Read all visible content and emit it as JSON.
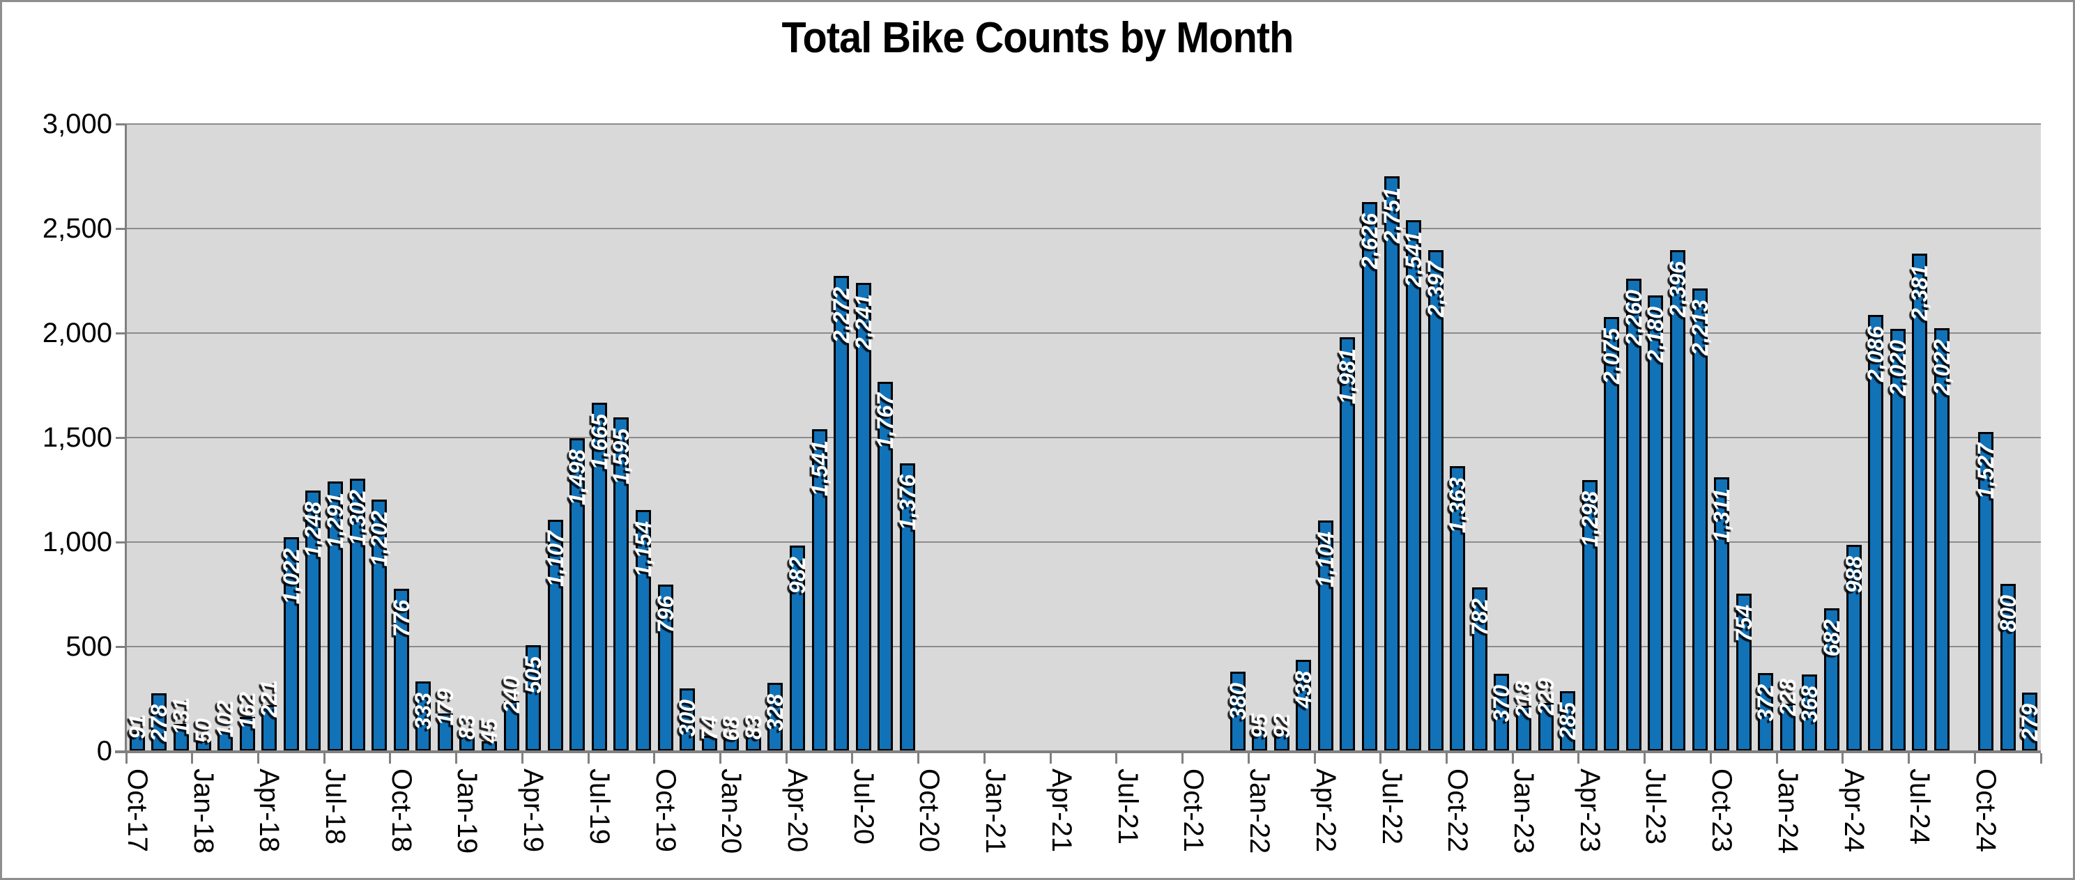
{
  "window": {
    "title": "Total Bike Counts by Month"
  },
  "chart_data": {
    "type": "bar",
    "title": "Total Bike Counts by Month",
    "xlabel": "",
    "ylabel": "",
    "legend": "none",
    "grid": true,
    "plot_bg": "#D9D9D9",
    "colors": {
      "bar_fill": "#1172B8",
      "bar_outline": "#000000",
      "gridline": "#8C8C8C",
      "axis": "#808080",
      "data_label_text": "#FFFFFF",
      "title_text": "#000000"
    },
    "y_axis": {
      "min": 0,
      "max": 3000,
      "step": 500,
      "tick_labels": [
        "0",
        "500",
        "1,000",
        "1,500",
        "2,000",
        "2,500",
        "3,000"
      ]
    },
    "x_axis": {
      "tick_interval": 3,
      "tick_labels": [
        "Oct-17",
        "Jan-18",
        "Apr-18",
        "Jul-18",
        "Oct-18",
        "Jan-19",
        "Apr-19",
        "Jul-19",
        "Oct-19",
        "Jan-20",
        "Apr-20",
        "Jul-20",
        "Oct-20",
        "Jan-21",
        "Apr-21",
        "Jul-21",
        "Oct-21",
        "Jan-22",
        "Apr-22",
        "Jul-22",
        "Oct-22",
        "Jan-23",
        "Apr-23",
        "Jul-23",
        "Oct-23",
        "Jan-24",
        "Apr-24",
        "Jul-24",
        "Oct-24"
      ]
    },
    "categories": [
      "Oct-17",
      "Nov-17",
      "Dec-17",
      "Jan-18",
      "Feb-18",
      "Mar-18",
      "Apr-18",
      "May-18",
      "Jun-18",
      "Jul-18",
      "Aug-18",
      "Sep-18",
      "Oct-18",
      "Nov-18",
      "Dec-18",
      "Jan-19",
      "Feb-19",
      "Mar-19",
      "Apr-19",
      "May-19",
      "Jun-19",
      "Jul-19",
      "Aug-19",
      "Sep-19",
      "Oct-19",
      "Nov-19",
      "Dec-19",
      "Jan-20",
      "Feb-20",
      "Mar-20",
      "Apr-20",
      "May-20",
      "Jun-20",
      "Jul-20",
      "Aug-20",
      "Sep-20",
      "Oct-20",
      "Nov-20",
      "Dec-20",
      "Jan-21",
      "Feb-21",
      "Mar-21",
      "Apr-21",
      "May-21",
      "Jun-21",
      "Jul-21",
      "Aug-21",
      "Sep-21",
      "Oct-21",
      "Nov-21",
      "Dec-21",
      "Jan-22",
      "Feb-22",
      "Mar-22",
      "Apr-22",
      "May-22",
      "Jun-22",
      "Jul-22",
      "Aug-22",
      "Sep-22",
      "Oct-22",
      "Nov-22",
      "Dec-22",
      "Jan-23",
      "Feb-23",
      "Mar-23",
      "Apr-23",
      "May-23",
      "Jun-23",
      "Jul-23",
      "Aug-23",
      "Sep-23",
      "Oct-23",
      "Nov-23",
      "Dec-23",
      "Jan-24",
      "Feb-24",
      "Mar-24",
      "Apr-24",
      "May-24",
      "Jun-24",
      "Jul-24",
      "Aug-24",
      "Sep-24",
      "Oct-24",
      "Nov-24",
      "Dec-24"
    ],
    "values": [
      91,
      278,
      131,
      50,
      102,
      162,
      221,
      1022,
      1248,
      1291,
      1302,
      1202,
      776,
      333,
      179,
      83,
      45,
      240,
      505,
      1107,
      1498,
      1665,
      1595,
      1154,
      796,
      300,
      74,
      68,
      83,
      328,
      982,
      1541,
      2272,
      2241,
      1767,
      1376,
      null,
      null,
      null,
      null,
      null,
      null,
      null,
      null,
      null,
      null,
      null,
      null,
      null,
      null,
      380,
      95,
      92,
      438,
      1104,
      1981,
      2626,
      2751,
      2541,
      2397,
      1363,
      782,
      370,
      218,
      229,
      285,
      1298,
      2075,
      2260,
      2180,
      2396,
      2213,
      1311,
      754,
      372,
      228,
      368,
      682,
      988,
      2086,
      2020,
      2381,
      2022,
      null,
      1527,
      800,
      279
    ]
  }
}
